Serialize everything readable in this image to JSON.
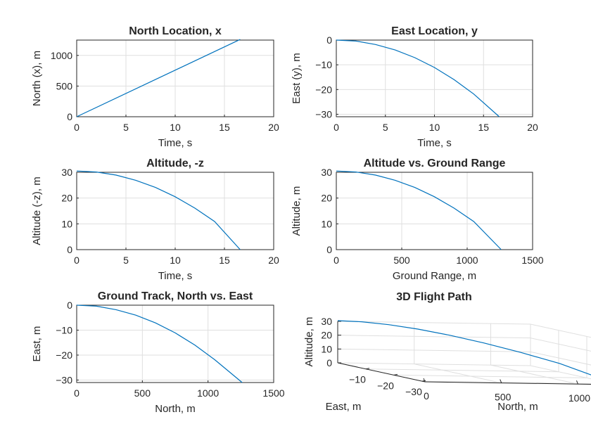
{
  "figure": {
    "background": "#ffffff",
    "line_color": "#0072bd"
  },
  "chart_data": [
    {
      "type": "line",
      "title": "North Location, x",
      "xlabel": "Time, s",
      "ylabel": "North (x), m",
      "xlim": [
        0,
        20
      ],
      "ylim": [
        0,
        1250
      ],
      "xticks": [
        0,
        5,
        10,
        15,
        20
      ],
      "yticks": [
        0,
        500,
        1000
      ],
      "grid": true,
      "series": [
        {
          "x": [
            0,
            16.6
          ],
          "y": [
            0,
            1260
          ]
        }
      ]
    },
    {
      "type": "line",
      "title": "East Location, y",
      "xlabel": "Time, s",
      "ylabel": "East (y), m",
      "xlim": [
        0,
        20
      ],
      "ylim": [
        -31,
        0
      ],
      "xticks": [
        0,
        5,
        10,
        15,
        20
      ],
      "yticks": [
        -30,
        -20,
        -10,
        0
      ],
      "grid": true,
      "series": [
        {
          "x": [
            0,
            2,
            4,
            6,
            8,
            10,
            12,
            14,
            16.6
          ],
          "y": [
            0,
            -0.4,
            -1.8,
            -4.0,
            -7.1,
            -11.1,
            -16.0,
            -21.8,
            -31
          ]
        }
      ]
    },
    {
      "type": "line",
      "title": "Altitude, -z",
      "xlabel": "Time, s",
      "ylabel": "Altitude (-z), m",
      "xlim": [
        0,
        20
      ],
      "ylim": [
        0,
        30
      ],
      "xticks": [
        0,
        5,
        10,
        15,
        20
      ],
      "yticks": [
        0,
        10,
        20,
        30
      ],
      "grid": true,
      "series": [
        {
          "x": [
            0,
            2,
            4,
            6,
            8,
            10,
            12,
            14,
            16.6
          ],
          "y": [
            30.5,
            30.1,
            28.9,
            26.9,
            24.1,
            20.5,
            16.1,
            10.9,
            0
          ]
        }
      ]
    },
    {
      "type": "line",
      "title": "Altitude vs. Ground Range",
      "xlabel": "Ground Range, m",
      "ylabel": "Altitude, m",
      "xlim": [
        0,
        1500
      ],
      "ylim": [
        0,
        30
      ],
      "xticks": [
        0,
        500,
        1000,
        1500
      ],
      "yticks": [
        0,
        10,
        20,
        30
      ],
      "grid": true,
      "series": [
        {
          "x": [
            0,
            150,
            300,
            450,
            600,
            750,
            900,
            1050,
            1260
          ],
          "y": [
            30.5,
            30.1,
            28.9,
            26.9,
            24.1,
            20.5,
            16.1,
            10.9,
            0
          ]
        }
      ]
    },
    {
      "type": "line",
      "title": "Ground Track, North vs. East",
      "xlabel": "North, m",
      "ylabel": "East, m",
      "xlim": [
        0,
        1500
      ],
      "ylim": [
        -31,
        0
      ],
      "xticks": [
        0,
        500,
        1000,
        1500
      ],
      "yticks": [
        -30,
        -20,
        -10,
        0
      ],
      "grid": true,
      "series": [
        {
          "x": [
            0,
            150,
            300,
            450,
            600,
            750,
            900,
            1050,
            1260
          ],
          "y": [
            0,
            -0.4,
            -1.8,
            -4.0,
            -7.1,
            -11.1,
            -16.0,
            -21.8,
            -31
          ]
        }
      ]
    },
    {
      "type": "line3d",
      "title": "3D Flight Path",
      "xlabel": "North, m",
      "ylabel": "East, m",
      "zlabel": "Altitude, m",
      "xlim": [
        0,
        1260
      ],
      "ylim": [
        -31,
        0
      ],
      "zlim": [
        0,
        30
      ],
      "xticks": [
        0,
        500,
        1000
      ],
      "yticks": [
        -10,
        -20,
        -30
      ],
      "zticks": [
        0,
        10,
        20,
        30
      ],
      "grid": true,
      "series": [
        {
          "x": [
            0,
            150,
            300,
            450,
            600,
            750,
            900,
            1050,
            1260
          ],
          "y": [
            0,
            -0.4,
            -1.8,
            -4.0,
            -7.1,
            -11.1,
            -16.0,
            -21.8,
            -31
          ],
          "z": [
            30.5,
            30.1,
            28.9,
            26.9,
            24.1,
            20.5,
            16.1,
            10.9,
            0
          ]
        }
      ]
    }
  ]
}
